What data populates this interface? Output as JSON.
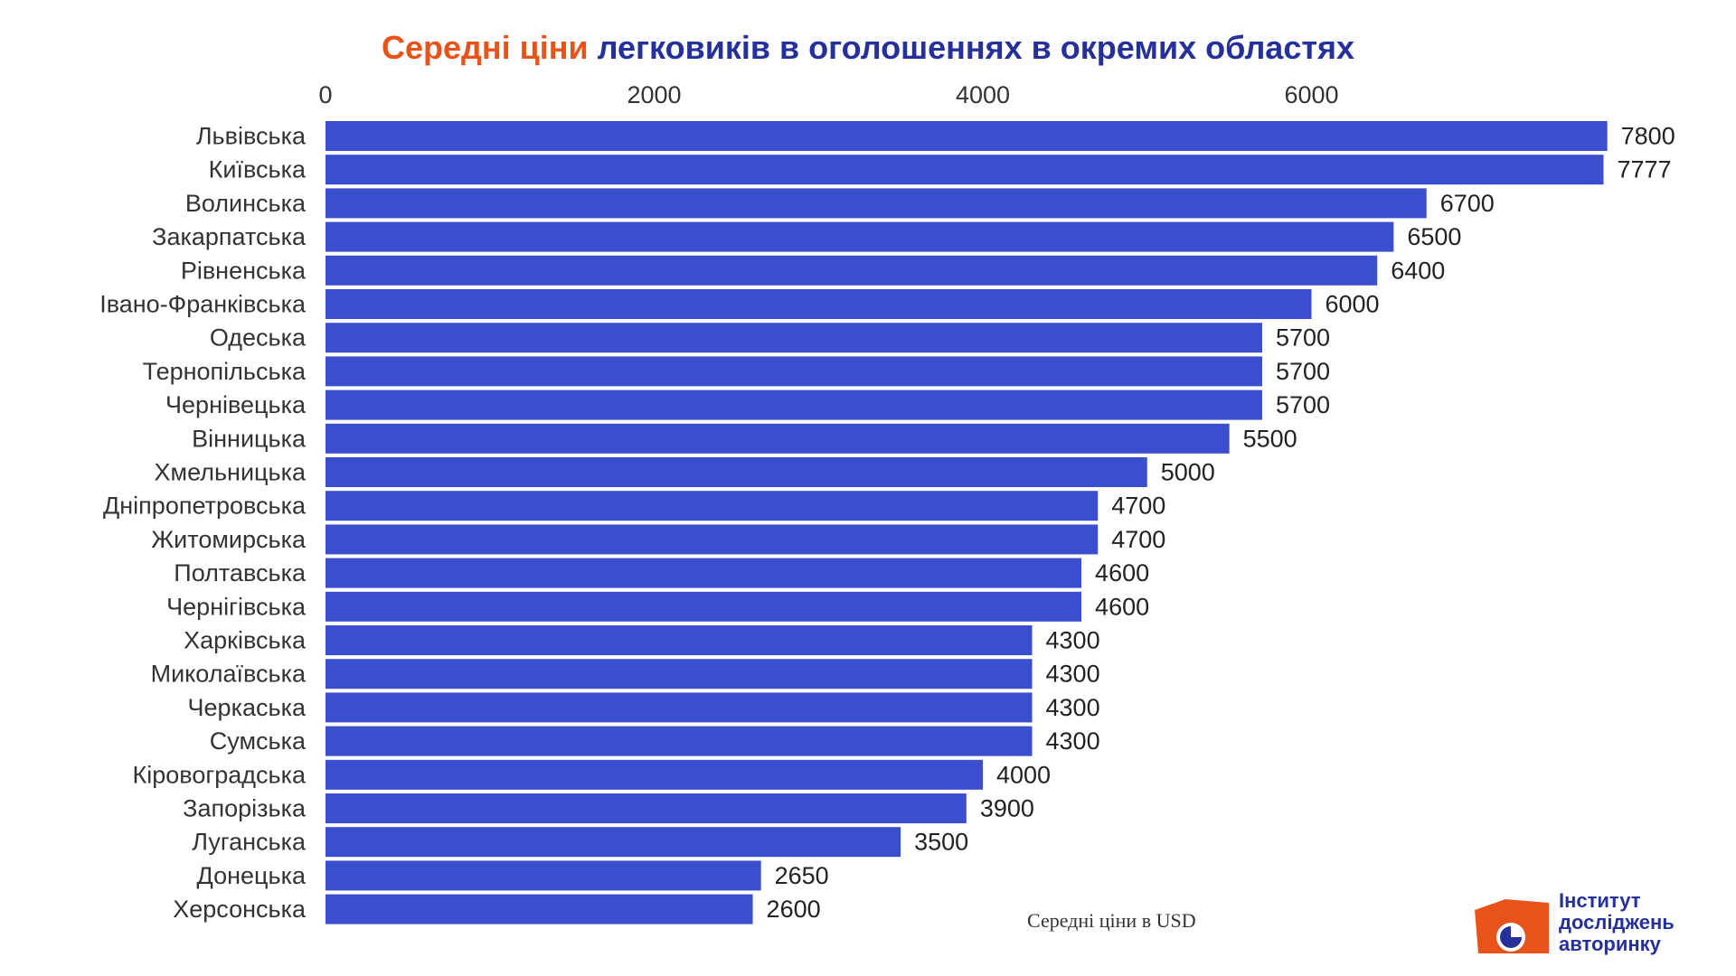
{
  "title": {
    "part1": "Середні ціни",
    "part2": "легковиків в оголошеннях в окремих областях"
  },
  "colors": {
    "bar": "#3b4fce",
    "title_accent": "#e8531a",
    "title_main": "#26309b"
  },
  "note": "Середні ціни в USD",
  "logo": {
    "line1": "Інститут",
    "line2": "досліджень",
    "line3": "авторинку"
  },
  "chart_data": {
    "type": "bar",
    "orientation": "horizontal",
    "title": "Середні ціни легковиків в оголошеннях в окремих областях",
    "xlabel": "Середні ціни в USD",
    "ylabel": "",
    "xlim": [
      0,
      8000
    ],
    "xticks": [
      0,
      2000,
      4000,
      6000
    ],
    "grid": false,
    "categories": [
      "Львівська",
      "Київська",
      "Волинська",
      "Закарпатська",
      "Рівненська",
      "Івано-Франківська",
      "Одеська",
      "Тернопільська",
      "Чернівецька",
      "Вінницька",
      "Хмельницька",
      "Дніпропетровська",
      "Житомирська",
      "Полтавська",
      "Чернігівська",
      "Харківська",
      "Миколаївська",
      "Черкаська",
      "Сумська",
      "Кіровоградська",
      "Запорізька",
      "Луганська",
      "Донецька",
      "Херсонська"
    ],
    "values": [
      7800,
      7777,
      6700,
      6500,
      6400,
      6000,
      5700,
      5700,
      5700,
      5500,
      5000,
      4700,
      4700,
      4600,
      4600,
      4300,
      4300,
      4300,
      4300,
      4000,
      3900,
      3500,
      2650,
      2600
    ]
  }
}
